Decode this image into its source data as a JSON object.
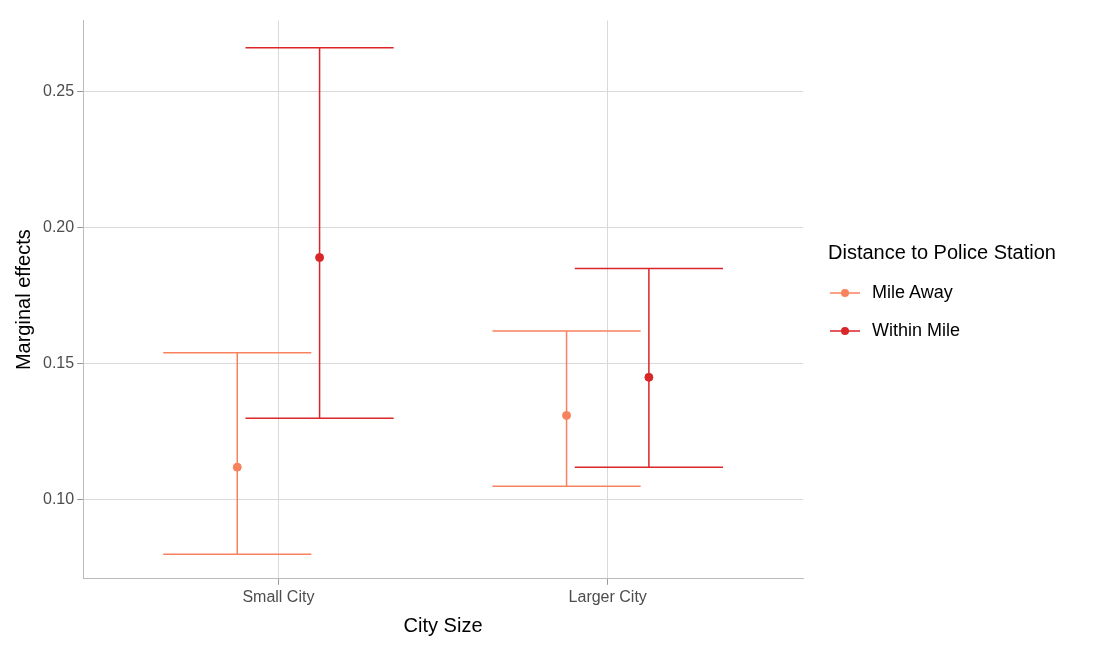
{
  "chart_data": {
    "type": "scatter",
    "xlabel": "City Size",
    "ylabel": "Marginal effects",
    "legend_title": "Distance to Police Station",
    "categories": [
      "Small City",
      "Larger City"
    ],
    "series": [
      {
        "name": "Mile Away",
        "color": "#f8825e",
        "values": [
          0.112,
          0.131
        ],
        "errors": [
          [
            0.08,
            0.154
          ],
          [
            0.105,
            0.162
          ]
        ]
      },
      {
        "name": "Within Mile",
        "color": "#d92628",
        "values": [
          0.189,
          0.145
        ],
        "errors": [
          [
            0.13,
            0.266
          ],
          [
            0.112,
            0.185
          ]
        ]
      }
    ],
    "ylim": [
      0.071,
      0.276
    ],
    "yticks": [
      {
        "value": 0.1,
        "label": "0.10"
      },
      {
        "value": 0.15,
        "label": "0.15"
      },
      {
        "value": 0.2,
        "label": "0.20"
      },
      {
        "value": 0.25,
        "label": "0.25"
      }
    ],
    "grid": true,
    "legend": "right",
    "marker": "circle"
  }
}
